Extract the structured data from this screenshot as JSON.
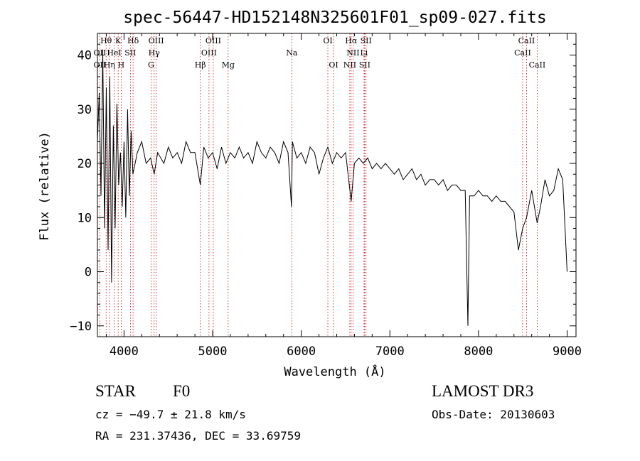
{
  "chart_data": {
    "type": "line",
    "title": "spec-56447-HD152148N325601F01_sp09-027.fits",
    "xlabel": "Wavelength (Å)",
    "ylabel": "Flux (relative)",
    "xlim": [
      3700,
      9100
    ],
    "ylim": [
      -12,
      44
    ],
    "xticks": [
      4000,
      5000,
      6000,
      7000,
      8000,
      9000
    ],
    "yticks": [
      -10,
      0,
      10,
      20,
      30,
      40
    ],
    "xticklabels": [
      "4000",
      "5000",
      "6000",
      "7000",
      "8000",
      "9000"
    ],
    "yticklabels": [
      "−10",
      "0",
      "10",
      "20",
      "30",
      "40"
    ],
    "series": [
      {
        "name": "flux",
        "x": [
          3700,
          3720,
          3740,
          3760,
          3780,
          3800,
          3820,
          3840,
          3860,
          3880,
          3900,
          3920,
          3940,
          3960,
          3980,
          4000,
          4020,
          4040,
          4060,
          4080,
          4100,
          4150,
          4200,
          4250,
          4300,
          4340,
          4380,
          4450,
          4500,
          4550,
          4600,
          4650,
          4700,
          4750,
          4800,
          4861,
          4900,
          4950,
          5000,
          5050,
          5100,
          5150,
          5200,
          5250,
          5300,
          5350,
          5400,
          5450,
          5500,
          5550,
          5600,
          5650,
          5700,
          5750,
          5800,
          5850,
          5890,
          5900,
          5950,
          6000,
          6050,
          6100,
          6150,
          6200,
          6250,
          6300,
          6350,
          6400,
          6450,
          6500,
          6563,
          6600,
          6650,
          6700,
          6750,
          6800,
          6850,
          6900,
          6950,
          7000,
          7050,
          7100,
          7150,
          7200,
          7250,
          7300,
          7350,
          7400,
          7450,
          7500,
          7550,
          7600,
          7650,
          7700,
          7750,
          7800,
          7850,
          7880,
          7900,
          7950,
          8000,
          8050,
          8100,
          8150,
          8200,
          8250,
          8300,
          8350,
          8400,
          8450,
          8498,
          8542,
          8600,
          8662,
          8700,
          8750,
          8800,
          8850,
          8900,
          8950,
          9000
        ],
        "values": [
          24,
          33,
          14,
          41,
          8,
          34,
          4,
          36,
          -2,
          27,
          8,
          31,
          16,
          22,
          12,
          24,
          10,
          30,
          14,
          26,
          18,
          22,
          24,
          20,
          21,
          18,
          22,
          20,
          23,
          21,
          22,
          20,
          24,
          22,
          22,
          16,
          23,
          21,
          22,
          19,
          23,
          20,
          22,
          21,
          23,
          21,
          22,
          20,
          24,
          22,
          21,
          23,
          22,
          20,
          24,
          22,
          12,
          24,
          21,
          22,
          20,
          23,
          22,
          18,
          21,
          23,
          20,
          22,
          21,
          22,
          13,
          20,
          21,
          20,
          21,
          19,
          20,
          19,
          20,
          19,
          18,
          19,
          17,
          18,
          19,
          17,
          18,
          16,
          17,
          17,
          16,
          17,
          15,
          16,
          16,
          15,
          15,
          -10,
          14,
          14,
          15,
          14,
          14,
          13,
          14,
          13,
          13,
          12,
          11,
          4,
          8,
          10,
          15,
          9,
          12,
          17,
          14,
          15,
          19,
          17,
          0
        ]
      }
    ],
    "line_labels": [
      {
        "label": "Hθ",
        "x": 3798,
        "row": 1
      },
      {
        "label": "K",
        "x": 3934,
        "row": 1
      },
      {
        "label": "Hδ",
        "x": 4102,
        "row": 1
      },
      {
        "label": "OIII",
        "x": 4363,
        "row": 1
      },
      {
        "label": "OIII",
        "x": 5007,
        "row": 1
      },
      {
        "label": "OI",
        "x": 6300,
        "row": 1
      },
      {
        "label": "Hα",
        "x": 6563,
        "row": 1
      },
      {
        "label": "SII",
        "x": 6731,
        "row": 1
      },
      {
        "label": "CaII",
        "x": 8542,
        "row": 1
      },
      {
        "label": "OII",
        "x": 3727,
        "row": 2
      },
      {
        "label": "HeI",
        "x": 3889,
        "row": 2
      },
      {
        "label": "SII",
        "x": 4072,
        "row": 2
      },
      {
        "label": "Hγ",
        "x": 4340,
        "row": 2
      },
      {
        "label": "OIII",
        "x": 4959,
        "row": 2
      },
      {
        "label": "Na",
        "x": 5893,
        "row": 2
      },
      {
        "label": "NII",
        "x": 6584,
        "row": 2
      },
      {
        "label": "Li",
        "x": 6708,
        "row": 2
      },
      {
        "label": "CaII",
        "x": 8498,
        "row": 2
      },
      {
        "label": "OII",
        "x": 3727,
        "row": 3
      },
      {
        "label": "Hη",
        "x": 3835,
        "row": 3
      },
      {
        "label": "H",
        "x": 3968,
        "row": 3
      },
      {
        "label": "G",
        "x": 4305,
        "row": 3
      },
      {
        "label": "Hβ",
        "x": 4861,
        "row": 3
      },
      {
        "label": "Mg",
        "x": 5175,
        "row": 3
      },
      {
        "label": "OI",
        "x": 6364,
        "row": 3
      },
      {
        "label": "NII",
        "x": 6548,
        "row": 3
      },
      {
        "label": "SII",
        "x": 6716,
        "row": 3
      },
      {
        "label": "CaII",
        "x": 8662,
        "row": 3
      }
    ],
    "line_markers": [
      3727,
      3798,
      3835,
      3889,
      3934,
      3968,
      4072,
      4102,
      4305,
      4340,
      4363,
      4861,
      4959,
      5007,
      5175,
      5893,
      6300,
      6364,
      6548,
      6563,
      6584,
      6708,
      6716,
      6731,
      8498,
      8542,
      8662
    ],
    "colors": {
      "line": "#000000",
      "marker": "#cc0000"
    }
  },
  "info": {
    "object_class": "STAR",
    "subclass": "F0",
    "survey": "LAMOST DR3",
    "redshift": "cz = −49.7 ± 21.8 km/s",
    "obs_date": "Obs-Date: 20130603",
    "coords": "RA = 231.37436, DEC =  33.69759"
  }
}
